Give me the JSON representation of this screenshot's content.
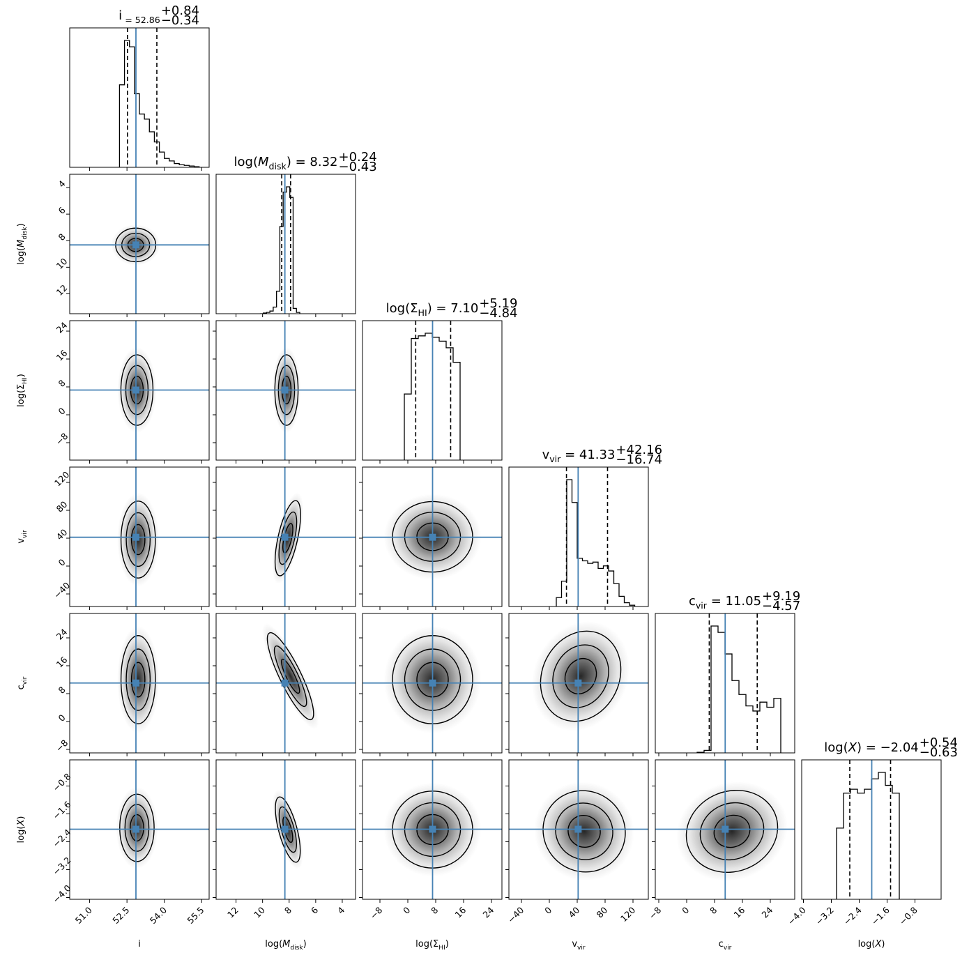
{
  "chart_data": {
    "type": "corner",
    "colors": {
      "truth": "#4682b4",
      "contour": "#000000",
      "histogram": "#000000",
      "density": "#000000"
    },
    "parameters": [
      {
        "key": "i",
        "label": "i",
        "label_parts": [
          "i",
          ""
        ],
        "title": "i = 52.86",
        "title_parts": [
          "i",
          "",
          " = 52.86"
        ],
        "value": 52.86,
        "err_plus": "+0.84",
        "err_minus": "−0.34",
        "range": [
          50.2,
          55.8
        ],
        "ticks": [
          51.0,
          52.5,
          54.0,
          55.5
        ],
        "tick_labels": [
          "51.0",
          "52.5",
          "54.0",
          "55.5"
        ],
        "quantiles": [
          52.52,
          53.7
        ],
        "hist": {
          "edges": [
            52.2,
            52.4,
            52.6,
            52.8,
            53.0,
            53.2,
            53.4,
            53.6,
            53.8,
            54.0,
            54.2,
            54.4,
            54.6,
            54.8,
            55.0,
            55.2,
            55.4
          ],
          "counts": [
            0.65,
            1.0,
            0.95,
            0.58,
            0.42,
            0.38,
            0.28,
            0.2,
            0.12,
            0.07,
            0.05,
            0.03,
            0.02,
            0.015,
            0.01,
            0.005
          ]
        }
      },
      {
        "key": "logMdisk",
        "label": "log(Mdisk)",
        "label_parts": [
          "log(",
          "M",
          "disk",
          ")"
        ],
        "title": "log(Mdisk) = 8.32",
        "title_parts": [
          "log(",
          "M",
          "disk",
          ") = 8.32"
        ],
        "value": 8.32,
        "err_plus": "+0.24",
        "err_minus": "−0.43",
        "range": [
          3.0,
          13.5
        ],
        "reversed": true,
        "ticks": [
          12,
          10,
          8,
          6,
          4
        ],
        "tick_labels": [
          "12",
          "10",
          "8",
          "6",
          "4"
        ],
        "ticks_y": [
          4,
          6,
          8,
          10,
          12
        ],
        "tick_labels_y": [
          "4",
          "6",
          "8",
          "10",
          "12"
        ],
        "quantiles": [
          7.89,
          8.56
        ],
        "hist": {
          "edges": [
            7.2,
            7.45,
            7.7,
            7.95,
            8.2,
            8.45,
            8.7,
            8.95,
            9.2,
            9.45,
            9.7,
            9.95,
            10.2
          ],
          "counts": [
            0.01,
            0.04,
            0.88,
            0.96,
            0.92,
            0.66,
            0.17,
            0.05,
            0.02,
            0.01,
            0.005,
            0.0
          ]
        }
      },
      {
        "key": "logSigmaHI",
        "label": "log(ΣHI)",
        "label_parts": [
          "log(Σ",
          "",
          "HI",
          ")"
        ],
        "title": "log(ΣHI) = 7.10",
        "title_parts": [
          "log(Σ",
          "",
          "HI",
          ") = 7.10"
        ],
        "value": 7.1,
        "err_plus": "+5.19",
        "err_minus": "−4.84",
        "range": [
          -13.0,
          27.0
        ],
        "ticks": [
          -8,
          0,
          8,
          16,
          24
        ],
        "tick_labels": [
          "−8",
          "0",
          "8",
          "16",
          "24"
        ],
        "quantiles": [
          2.26,
          12.29
        ],
        "hist": {
          "edges": [
            -1,
            1,
            3,
            5,
            7,
            9,
            11,
            13,
            15
          ],
          "counts": [
            0.5,
            0.92,
            0.94,
            0.96,
            0.93,
            0.9,
            0.85,
            0.74
          ]
        }
      },
      {
        "key": "vvir",
        "label": "vvir",
        "label_parts": [
          "v",
          "",
          "vir",
          ""
        ],
        "title": "vvir = 41.33",
        "title_parts": [
          "v",
          "",
          "vir",
          " = 41.33"
        ],
        "value": 41.33,
        "err_plus": "+42.16",
        "err_minus": "−16.74",
        "range": [
          -58.0,
          142.0
        ],
        "ticks": [
          -40,
          0,
          40,
          80,
          120
        ],
        "tick_labels": [
          "−40",
          "0",
          "40",
          "80",
          "120"
        ],
        "quantiles": [
          24.59,
          83.49
        ],
        "hist": {
          "edges": [
            10,
            17.5,
            25,
            32.5,
            40,
            47.5,
            55,
            62.5,
            70,
            77.5,
            85,
            92.5,
            100,
            107.5,
            115,
            122.5
          ],
          "counts": [
            0.07,
            0.2,
            1.0,
            0.82,
            0.38,
            0.36,
            0.34,
            0.35,
            0.3,
            0.32,
            0.28,
            0.18,
            0.08,
            0.03,
            0.01
          ]
        }
      },
      {
        "key": "cvir",
        "label": "cvir",
        "label_parts": [
          "c",
          "",
          "vir",
          ""
        ],
        "title": "cvir = 11.05",
        "title_parts": [
          "c",
          "",
          "vir",
          " = 11.05"
        ],
        "value": 11.05,
        "err_plus": "+9.19",
        "err_minus": "−4.57",
        "range": [
          -9.0,
          31.0
        ],
        "ticks": [
          -8,
          0,
          8,
          16,
          24
        ],
        "tick_labels": [
          "−8",
          "0",
          "8",
          "16",
          "24"
        ],
        "quantiles": [
          6.48,
          20.24
        ],
        "hist": {
          "edges": [
            3,
            5,
            7,
            9,
            11,
            13,
            15,
            17,
            19,
            21,
            23,
            25,
            27
          ],
          "counts": [
            0.005,
            0.02,
            1.0,
            0.95,
            0.78,
            0.57,
            0.46,
            0.37,
            0.33,
            0.4,
            0.36,
            0.43
          ]
        }
      },
      {
        "key": "logX",
        "label": "log(X)",
        "label_parts": [
          "log(",
          "X",
          "",
          ")"
        ],
        "title": "log(X) = −2.04",
        "title_parts": [
          "log(",
          "X",
          "",
          ") = −2.04"
        ],
        "value": -2.04,
        "err_plus": "+0.54",
        "err_minus": "−0.63",
        "range": [
          -4.05,
          -0.05
        ],
        "ticks": [
          -4.0,
          -3.2,
          -2.4,
          -1.6,
          -0.8
        ],
        "tick_labels": [
          "−4.0",
          "−3.2",
          "−2.4",
          "−1.6",
          "−0.8"
        ],
        "quantiles": [
          -2.67,
          -1.5
        ],
        "hist": {
          "edges": [
            -3.05,
            -2.85,
            -2.65,
            -2.45,
            -2.25,
            -2.05,
            -1.85,
            -1.65,
            -1.45,
            -1.25
          ],
          "counts": [
            0.55,
            0.82,
            0.85,
            0.82,
            0.85,
            0.93,
            0.98,
            0.88,
            0.82
          ]
        }
      }
    ],
    "joint": [
      {
        "x": 0,
        "y": 1,
        "center": [
          52.85,
          8.32
        ],
        "sigma": [
          0.35,
          0.55
        ],
        "rho": 0.0,
        "levels": [
          0.9,
          1.6,
          2.3
        ],
        "shape": "round"
      },
      {
        "x": 0,
        "y": 2,
        "center": [
          52.9,
          7.1
        ],
        "sigma": [
          0.28,
          4.4
        ],
        "rho": 0.0,
        "levels": [
          0.9,
          1.6,
          2.3
        ],
        "shape": "round"
      },
      {
        "x": 1,
        "y": 2,
        "center": [
          8.2,
          7.1
        ],
        "sigma": [
          0.38,
          4.4
        ],
        "rho": 0.0,
        "levels": [
          0.9,
          1.6,
          2.3
        ],
        "shape": "round"
      },
      {
        "x": 0,
        "y": 3,
        "center": [
          52.95,
          38.0
        ],
        "sigma": [
          0.3,
          24.0
        ],
        "rho": 0.0,
        "levels": [
          0.9,
          1.6,
          2.3
        ],
        "shape": "skew-up"
      },
      {
        "x": 1,
        "y": 3,
        "center": [
          8.1,
          40.0
        ],
        "sigma": [
          0.32,
          24.0
        ],
        "rho": 0.25,
        "levels": [
          0.9,
          1.6,
          2.3
        ],
        "shape": "skew-up"
      },
      {
        "x": 2,
        "y": 3,
        "center": [
          7.1,
          42.0
        ],
        "sigma": [
          5.0,
          22.0
        ],
        "rho": 0.0,
        "levels": [
          0.9,
          1.6,
          2.3
        ],
        "shape": "skew-up"
      },
      {
        "x": 0,
        "y": 4,
        "center": [
          52.95,
          12.0
        ],
        "sigma": [
          0.3,
          5.5
        ],
        "rho": 0.0,
        "levels": [
          0.9,
          1.6,
          2.3
        ],
        "shape": "skew-up"
      },
      {
        "x": 1,
        "y": 4,
        "center": [
          7.9,
          13.0
        ],
        "sigma": [
          0.35,
          6.0
        ],
        "rho": -0.55,
        "levels": [
          0.9,
          1.6,
          2.3
        ],
        "shape": "skew-up"
      },
      {
        "x": 2,
        "y": 4,
        "center": [
          7.1,
          12.0
        ],
        "sigma": [
          5.0,
          5.5
        ],
        "rho": 0.0,
        "levels": [
          0.9,
          1.6,
          2.3
        ],
        "shape": "skew-up"
      },
      {
        "x": 3,
        "y": 4,
        "center": [
          45.0,
          13.0
        ],
        "sigma": [
          24.0,
          5.8
        ],
        "rho": -0.55,
        "levels": [
          0.9,
          1.6,
          2.3
        ],
        "shape": "round"
      },
      {
        "x": 0,
        "y": 5,
        "center": [
          52.9,
          -2.0
        ],
        "sigma": [
          0.3,
          0.42
        ],
        "rho": 0.0,
        "levels": [
          0.9,
          1.6,
          2.3
        ],
        "shape": "round"
      },
      {
        "x": 1,
        "y": 5,
        "center": [
          8.1,
          -2.05
        ],
        "sigma": [
          0.3,
          0.42
        ],
        "rho": -0.3,
        "levels": [
          0.9,
          1.6,
          2.3
        ],
        "shape": "round"
      },
      {
        "x": 2,
        "y": 5,
        "center": [
          7.1,
          -2.05
        ],
        "sigma": [
          5.0,
          0.48
        ],
        "rho": 0.0,
        "levels": [
          0.9,
          1.6,
          2.3
        ],
        "shape": "round"
      },
      {
        "x": 3,
        "y": 5,
        "center": [
          50.0,
          -2.1
        ],
        "sigma": [
          26.0,
          0.5
        ],
        "rho": -0.88,
        "levels": [
          0.9,
          1.6,
          2.3
        ],
        "shape": "round"
      },
      {
        "x": 4,
        "y": 5,
        "center": [
          13.0,
          -2.1
        ],
        "sigma": [
          5.8,
          0.5
        ],
        "rho": 0.45,
        "levels": [
          0.9,
          1.6,
          2.3
        ],
        "shape": "round"
      }
    ]
  }
}
